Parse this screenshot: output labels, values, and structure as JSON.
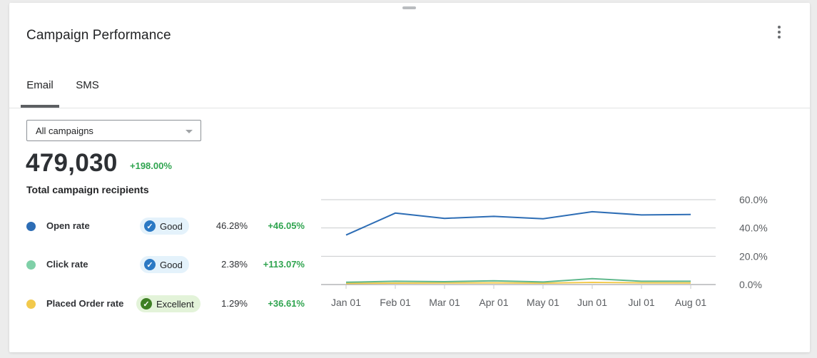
{
  "card": {
    "title": "Campaign Performance",
    "more_icon": "vertical-ellipsis-icon"
  },
  "tabs": [
    {
      "label": "Email",
      "active": true
    },
    {
      "label": "SMS",
      "active": false
    }
  ],
  "filter": {
    "selected": "All campaigns"
  },
  "summary": {
    "total": "479,030",
    "change": "+198.00%",
    "label": "Total campaign recipients"
  },
  "metrics": [
    {
      "name": "Open rate",
      "color": "#2d6db5",
      "badge": "Good",
      "badge_level": "good",
      "value": "46.28%",
      "change": "+46.05%"
    },
    {
      "name": "Click rate",
      "color": "#7fd0a8",
      "badge": "Good",
      "badge_level": "good",
      "value": "2.38%",
      "change": "+113.07%"
    },
    {
      "name": "Placed Order rate",
      "color": "#f2c94c",
      "badge": "Excellent",
      "badge_level": "excellent",
      "value": "1.29%",
      "change": "+36.61%"
    }
  ],
  "chart_data": {
    "type": "line",
    "x": [
      "Jan 01",
      "Feb 01",
      "Mar 01",
      "Apr 01",
      "May 01",
      "Jun 01",
      "Jul 01",
      "Aug 01"
    ],
    "y_ticks": [
      "60.0%",
      "40.0%",
      "20.0%",
      "0.0%"
    ],
    "ylim": [
      0,
      60
    ],
    "grid": true,
    "y_axis_side": "right",
    "series": [
      {
        "values": [
          35,
          50.5,
          46.8,
          48.2,
          46.5,
          51.5,
          49.2,
          49.5
        ],
        "color": "#2d6db5"
      },
      {
        "values": [
          1.6,
          2.3,
          2.0,
          2.6,
          1.8,
          4.2,
          2.3,
          2.3
        ],
        "color": "#5fb88c"
      },
      {
        "values": [
          0.8,
          1.0,
          1.1,
          1.2,
          1.0,
          1.5,
          1.2,
          1.1
        ],
        "color": "#f2c94c"
      }
    ]
  }
}
